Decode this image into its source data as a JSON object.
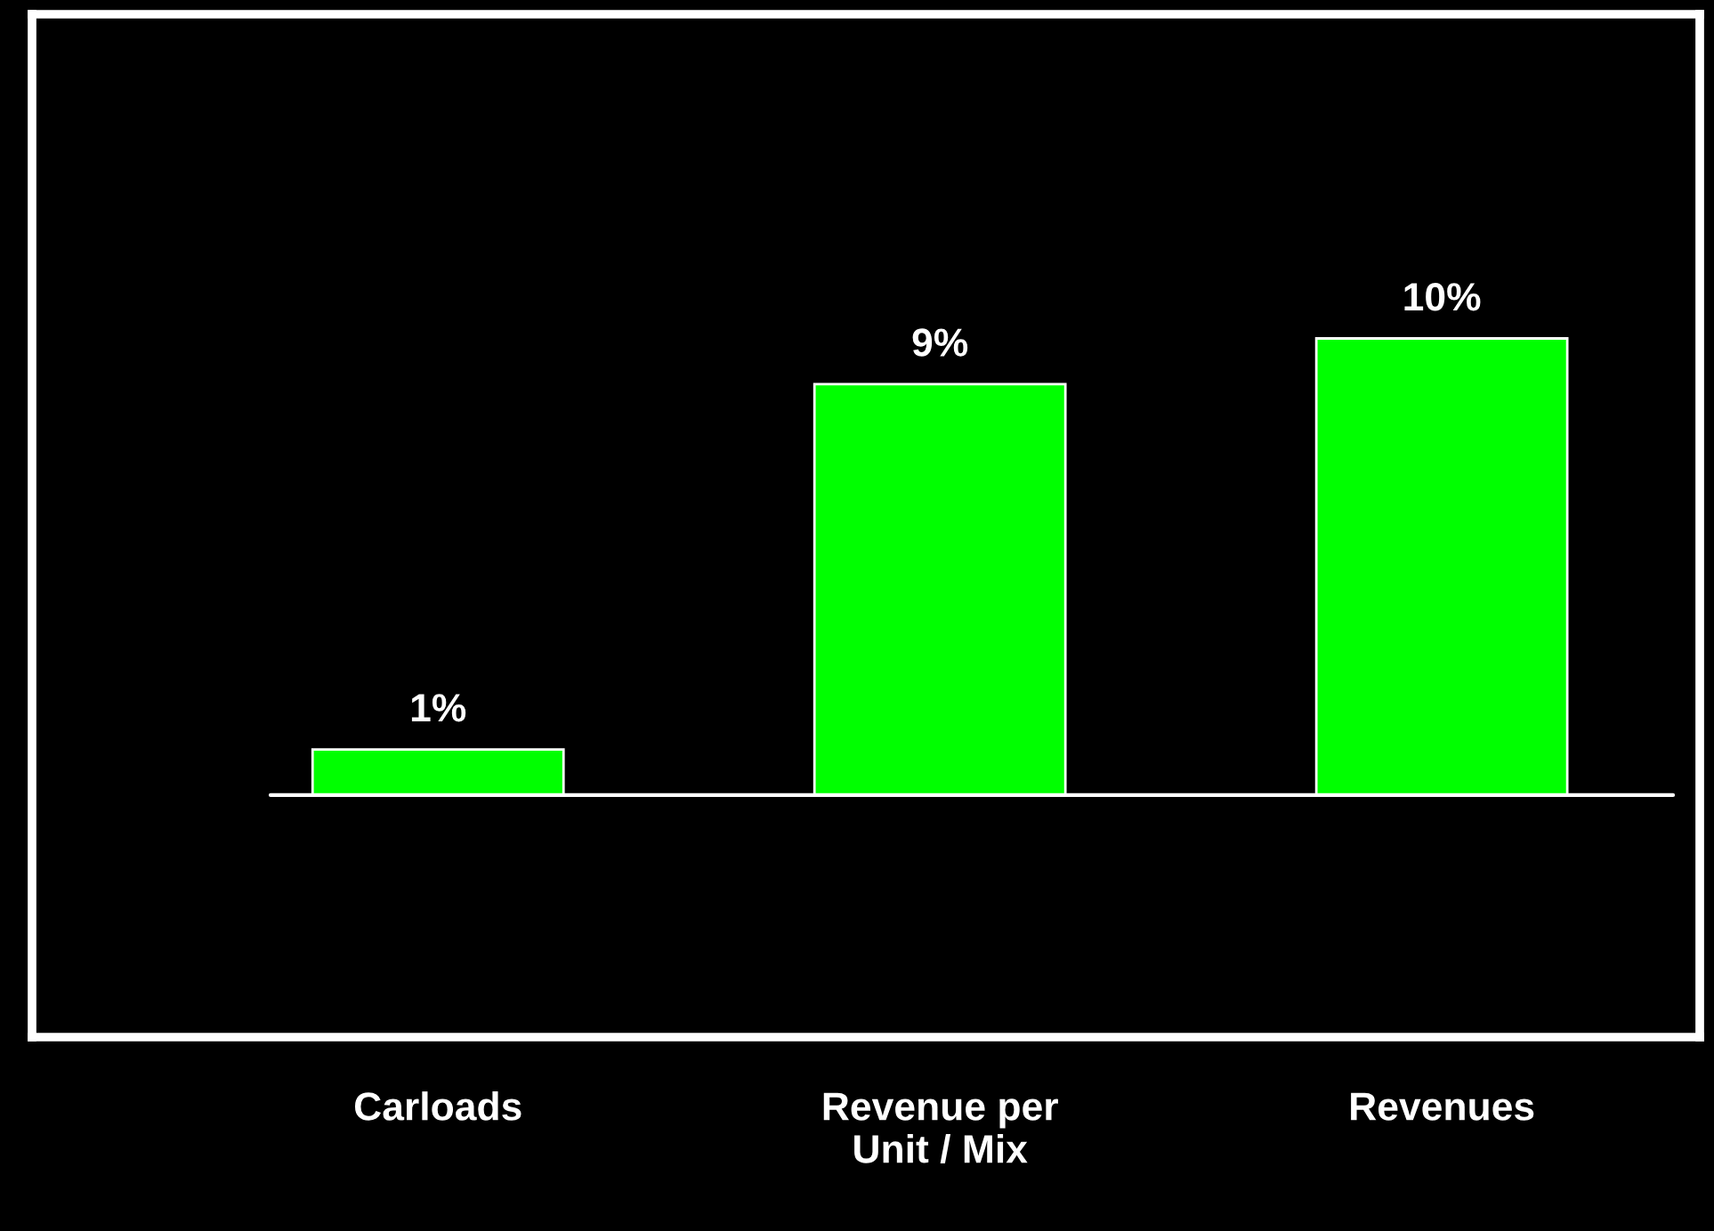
{
  "chart_data": {
    "type": "bar",
    "categories": [
      "Carloads",
      "Revenue per\nUnit / Mix",
      "Revenues"
    ],
    "values": [
      1,
      9,
      10
    ],
    "value_labels": [
      "1%",
      "9%",
      "10%"
    ],
    "color": "#00ff00",
    "grid": false,
    "legend": false
  }
}
